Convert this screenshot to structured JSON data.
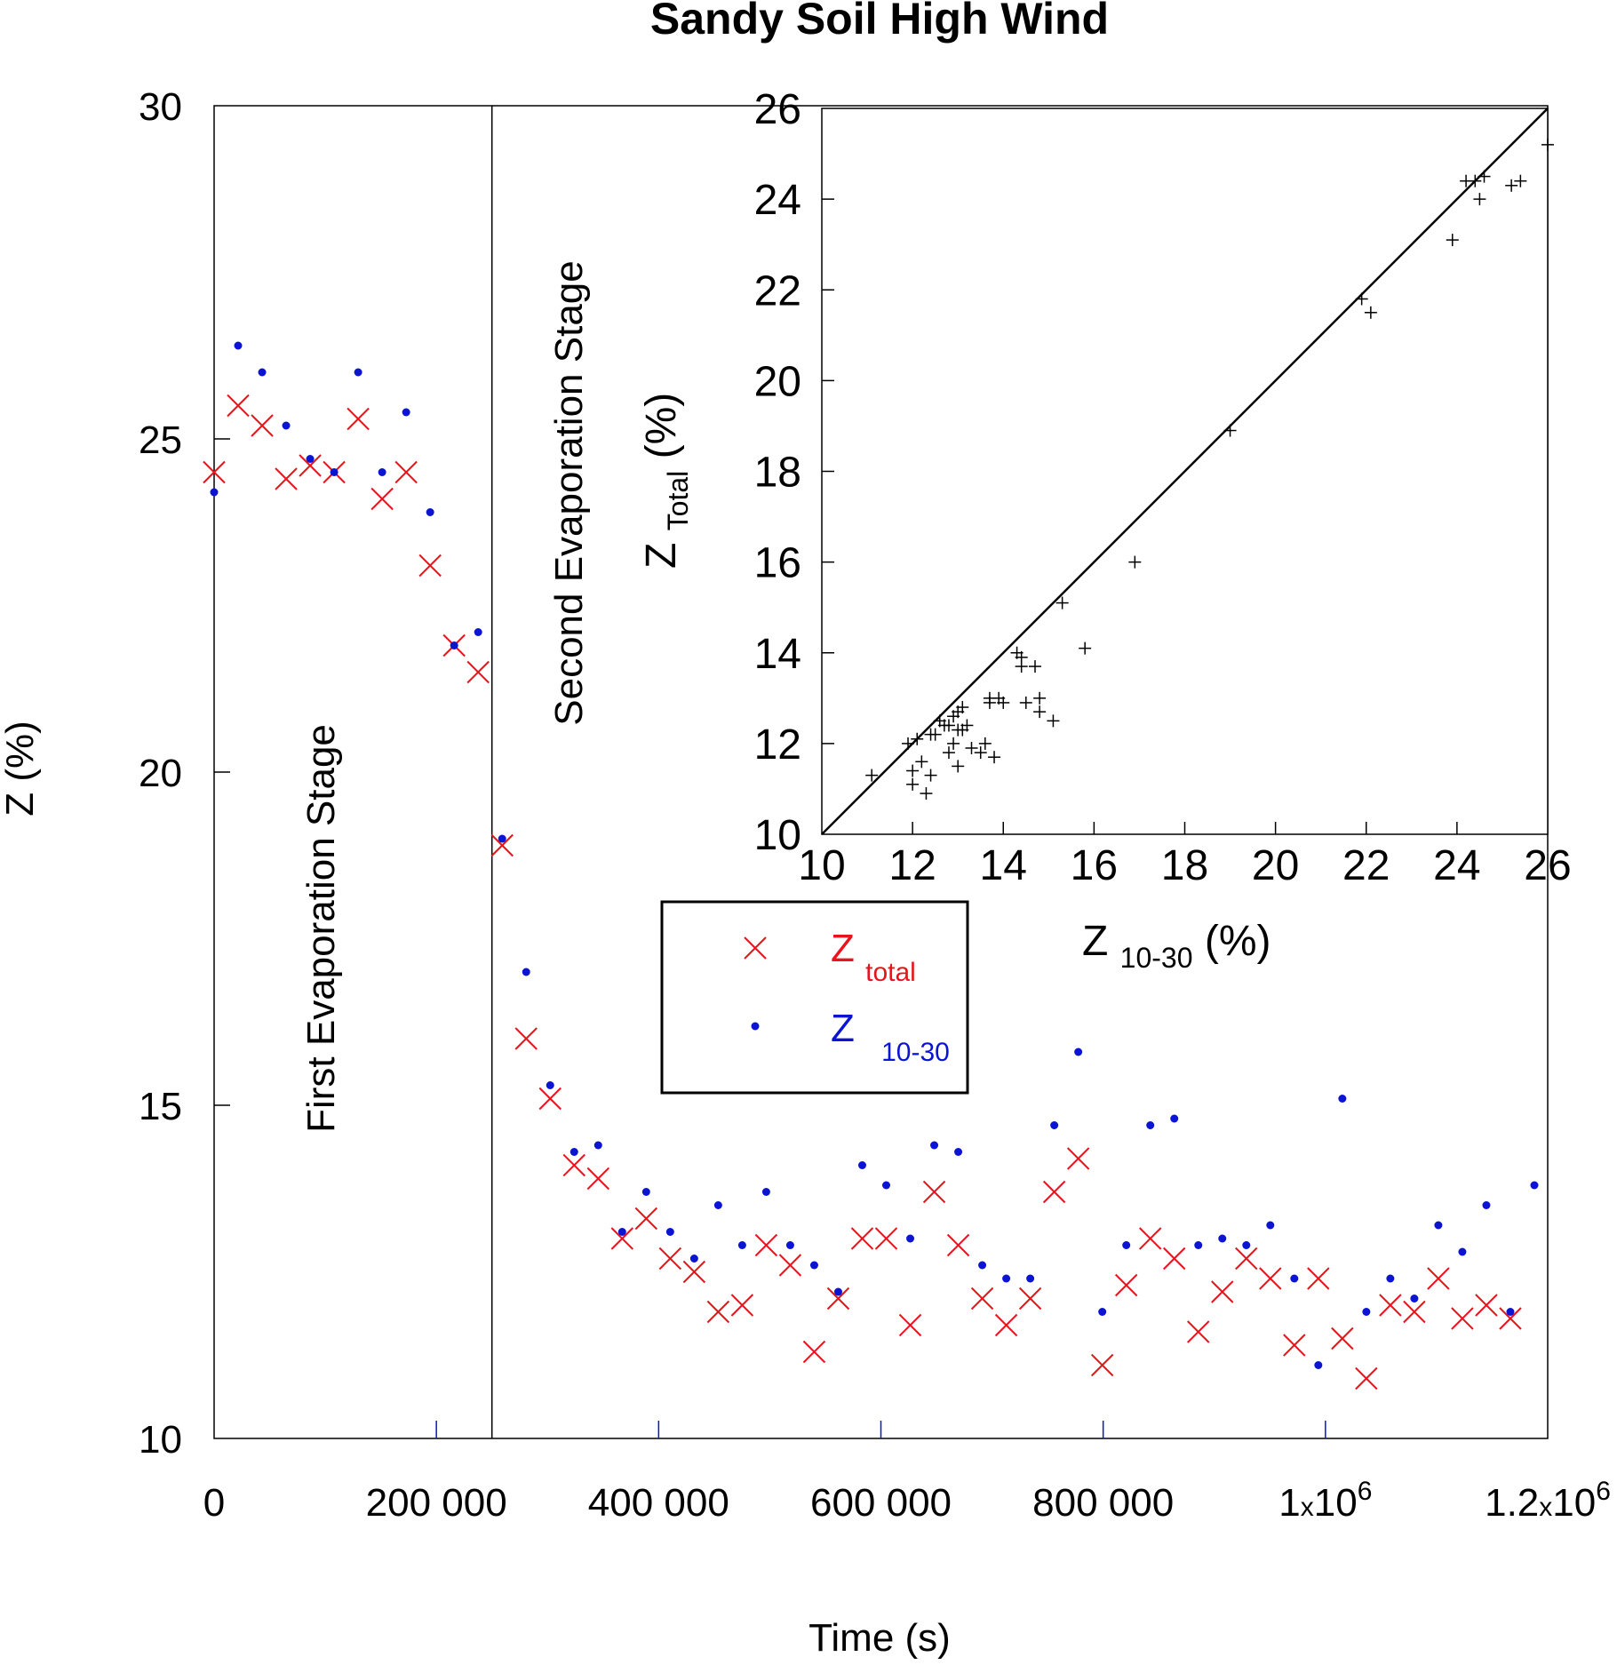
{
  "chart_data": [
    {
      "type": "scatter",
      "title": "Sandy Soil High Wind",
      "xlabel": "Time (s)",
      "ylabel": "Z (%)",
      "xlim": [
        0,
        1200000
      ],
      "ylim": [
        10,
        30
      ],
      "xticks": [
        0,
        200000,
        400000,
        600000,
        800000,
        1000000,
        1200000
      ],
      "xtick_labels": [
        "0",
        "200 000",
        "400 000",
        "600 000",
        "800 000",
        "1x10^6",
        "1.2x10^6"
      ],
      "yticks": [
        10,
        15,
        20,
        25,
        30
      ],
      "ytick_labels": [
        "10",
        "15",
        "20",
        "25",
        "30"
      ],
      "stage_boundary_x": 250000,
      "annotations": [
        "First Evaporation Stage",
        "Second Evaporation Stage"
      ],
      "legend": {
        "position": "center-right",
        "entries": [
          {
            "marker": "x",
            "main": "Z",
            "sub": "total",
            "color": "#e8141c"
          },
          {
            "marker": "dot",
            "main": "Z",
            "sub": "10-30",
            "color": "#0a14d2"
          }
        ]
      },
      "series": [
        {
          "name": "Z total",
          "marker": "x",
          "color": "#e8141c",
          "x": [
            0,
            21600,
            43200,
            64800,
            86400,
            108000,
            129600,
            151200,
            172800,
            194400,
            216000,
            237600,
            259200,
            280800,
            302400,
            324000,
            345600,
            367200,
            388800,
            410400,
            432000,
            453600,
            475200,
            496800,
            518400,
            540000,
            561600,
            583200,
            604800,
            626400,
            648000,
            669600,
            691200,
            712800,
            734400,
            756000,
            777600,
            799200,
            820800,
            842400,
            864000,
            885600,
            907200,
            928800,
            950400,
            972000,
            993600,
            1015200,
            1036800,
            1058400,
            1080000,
            1101600,
            1123200,
            1144800,
            1166400
          ],
          "y": [
            24.5,
            25.5,
            25.2,
            24.4,
            24.6,
            24.5,
            25.3,
            24.1,
            24.5,
            23.1,
            21.9,
            21.5,
            18.9,
            16.0,
            15.1,
            14.1,
            13.9,
            13.0,
            13.3,
            12.7,
            12.5,
            11.9,
            12.0,
            12.9,
            12.6,
            11.3,
            12.1,
            13.0,
            13.0,
            11.7,
            13.7,
            12.9,
            12.1,
            11.7,
            12.1,
            13.7,
            14.2,
            11.1,
            12.3,
            13.0,
            12.7,
            11.6,
            12.2,
            12.7,
            12.4,
            11.4,
            12.4,
            11.5,
            10.9,
            12.0,
            11.9,
            12.4,
            11.8,
            12.0,
            11.8
          ]
        },
        {
          "name": "Z 10-30",
          "marker": "dot",
          "color": "#0a14d2",
          "x": [
            0,
            21600,
            43200,
            64800,
            86400,
            108000,
            129600,
            151200,
            172800,
            194400,
            216000,
            237600,
            259200,
            280800,
            302400,
            324000,
            345600,
            367200,
            388800,
            410400,
            432000,
            453600,
            475200,
            496800,
            518400,
            540000,
            561600,
            583200,
            604800,
            626400,
            648000,
            669600,
            691200,
            712800,
            734400,
            756000,
            777600,
            799200,
            820800,
            842400,
            864000,
            885600,
            907200,
            928800,
            950400,
            972000,
            993600,
            1015200,
            1036800,
            1058400,
            1080000,
            1101600,
            1123200,
            1144800,
            1166400,
            1188000
          ],
          "y": [
            24.2,
            26.4,
            26.0,
            25.2,
            24.7,
            24.5,
            26.0,
            24.5,
            25.4,
            23.9,
            21.9,
            22.1,
            19.0,
            17.0,
            15.3,
            14.3,
            14.4,
            13.1,
            13.7,
            13.1,
            12.7,
            13.5,
            12.9,
            13.7,
            12.9,
            12.6,
            12.2,
            14.1,
            13.8,
            13.0,
            14.4,
            14.3,
            12.6,
            12.4,
            12.4,
            14.7,
            15.8,
            11.9,
            12.9,
            14.7,
            14.8,
            12.9,
            13.0,
            12.9,
            13.2,
            12.4,
            11.1,
            15.1,
            11.9,
            12.4,
            12.1,
            13.2,
            12.8,
            13.5,
            11.9,
            13.8
          ]
        }
      ]
    },
    {
      "type": "scatter",
      "title": "",
      "xlabel": "Z10-30 (%)",
      "ylabel": "ZTotal (%)",
      "xlabel_parts": {
        "main": "Z",
        "sub": "10-30",
        "suffix": " (%)"
      },
      "ylabel_parts": {
        "main": "Z",
        "sub": "Total",
        "suffix": " (%)"
      },
      "xlim": [
        10,
        26
      ],
      "ylim": [
        10,
        26
      ],
      "xticks": [
        10,
        12,
        14,
        16,
        18,
        20,
        22,
        24,
        26
      ],
      "xtick_labels": [
        "10",
        "12",
        "14",
        "16",
        "18",
        "20",
        "22",
        "24",
        "26"
      ],
      "yticks": [
        10,
        12,
        14,
        16,
        18,
        20,
        22,
        24,
        26
      ],
      "ytick_labels": [
        "10",
        "12",
        "14",
        "16",
        "18",
        "20",
        "22",
        "24",
        "26"
      ],
      "reference_line": {
        "type": "1:1",
        "from": [
          10,
          10
        ],
        "to": [
          26,
          26
        ]
      },
      "series": [
        {
          "name": "Z Total vs Z 10-30",
          "marker": "+",
          "color": "#000000",
          "x": [
            11.1,
            11.9,
            12.0,
            12.0,
            12.1,
            12.2,
            12.3,
            12.4,
            12.4,
            12.5,
            12.6,
            12.7,
            12.8,
            12.8,
            12.9,
            12.9,
            13.0,
            13.0,
            13.0,
            13.1,
            13.1,
            13.2,
            13.3,
            13.5,
            13.6,
            13.7,
            13.7,
            13.8,
            13.9,
            14.0,
            14.3,
            14.4,
            14.4,
            14.5,
            14.7,
            14.8,
            14.8,
            15.1,
            15.3,
            15.8,
            16.9,
            19.0,
            21.9,
            22.1,
            23.9,
            24.2,
            24.4,
            24.5,
            24.6,
            25.2,
            25.4,
            26.0
          ],
          "y": [
            11.3,
            12.0,
            11.4,
            11.1,
            12.1,
            11.6,
            10.9,
            12.2,
            11.3,
            12.2,
            12.5,
            12.4,
            12.4,
            11.8,
            12.0,
            12.6,
            12.3,
            11.5,
            12.7,
            12.3,
            12.8,
            12.4,
            11.9,
            11.8,
            12.0,
            13.0,
            12.9,
            11.7,
            13.0,
            12.9,
            14.0,
            13.7,
            13.9,
            12.9,
            13.7,
            12.7,
            13.0,
            12.5,
            15.1,
            14.1,
            16.0,
            18.9,
            21.8,
            21.5,
            23.1,
            24.4,
            24.4,
            24.0,
            24.5,
            24.3,
            24.4,
            25.2
          ]
        }
      ]
    }
  ]
}
